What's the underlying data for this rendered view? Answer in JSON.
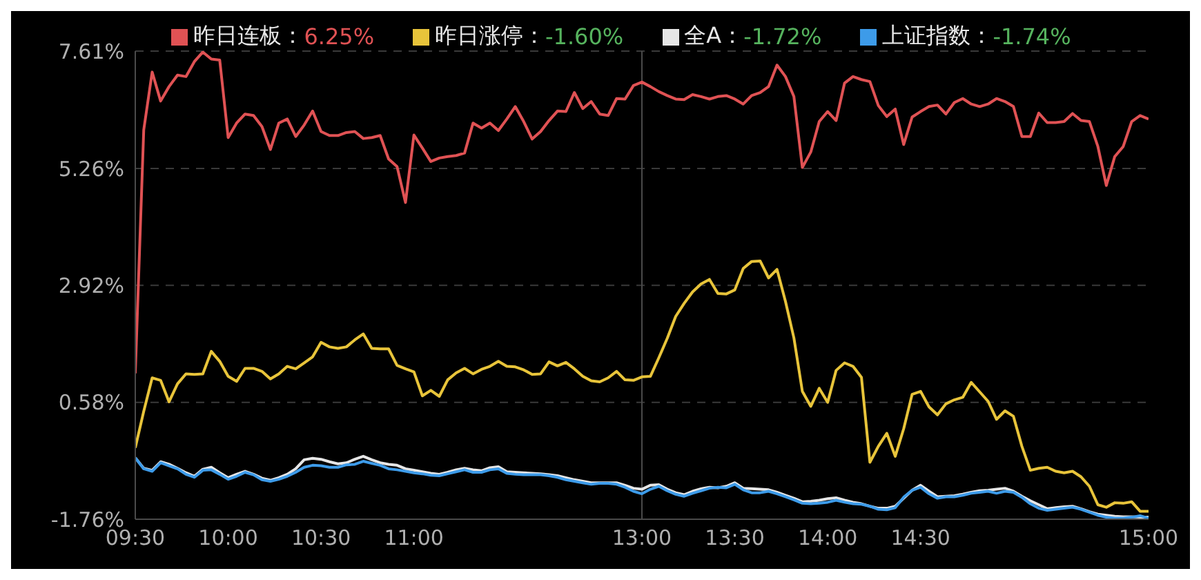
{
  "chart_data": {
    "type": "line",
    "legend": "top",
    "grid": "y",
    "marker": "none",
    "line_style": "solid",
    "categories": [
      "09:30",
      null,
      null,
      null,
      null,
      null,
      null,
      null,
      null,
      null,
      null,
      "10:00",
      null,
      null,
      null,
      null,
      null,
      null,
      null,
      null,
      null,
      null,
      "10:30",
      null,
      null,
      null,
      null,
      null,
      null,
      null,
      null,
      null,
      null,
      "11:00",
      null,
      null,
      null,
      null,
      null,
      null,
      null,
      null,
      null,
      null,
      null,
      null,
      null,
      null,
      null,
      null,
      null,
      null,
      null,
      null,
      null,
      null,
      null,
      null,
      null,
      null,
      "13:00",
      null,
      null,
      null,
      null,
      null,
      null,
      null,
      null,
      null,
      null,
      "13:30",
      null,
      null,
      null,
      null,
      null,
      null,
      null,
      null,
      null,
      null,
      "14:00",
      null,
      null,
      null,
      null,
      null,
      null,
      null,
      null,
      null,
      null,
      "14:30",
      null,
      null,
      null,
      null,
      null,
      null,
      null,
      null,
      null,
      null,
      null,
      null,
      null,
      null,
      null,
      null,
      null,
      null,
      null,
      null,
      null,
      null,
      null,
      null,
      null,
      null,
      "15:00"
    ],
    "ylim": [
      -1.76,
      7.61
    ],
    "yticks": [
      {
        "value": -1.76,
        "label": "-1.76%"
      },
      {
        "value": 0.58,
        "label": "0.58%"
      },
      {
        "value": 2.92,
        "label": "2.92%"
      },
      {
        "value": 5.26,
        "label": "5.26%"
      },
      {
        "value": 7.61,
        "label": "7.61%"
      }
    ],
    "ref_lines": [
      {
        "axis": "x",
        "value": "13:00",
        "color": "#4a4a4a"
      }
    ],
    "series": [
      {
        "name": "昨日连板：6.25%",
        "color": "#e05254",
        "values": [
          1.16,
          6.03,
          7.19,
          6.61,
          6.9,
          7.13,
          7.1,
          7.4,
          7.59,
          7.45,
          7.43,
          5.88,
          6.17,
          6.35,
          6.32,
          6.1,
          5.64,
          6.17,
          6.25,
          5.9,
          6.13,
          6.41,
          6.0,
          5.92,
          5.92,
          5.98,
          6.0,
          5.86,
          5.88,
          5.92,
          5.45,
          5.3,
          4.58,
          5.93,
          5.67,
          5.4,
          5.47,
          5.5,
          5.52,
          5.57,
          6.17,
          6.07,
          6.17,
          6.02,
          6.25,
          6.5,
          6.2,
          5.85,
          6.0,
          6.22,
          6.41,
          6.4,
          6.78,
          6.46,
          6.6,
          6.35,
          6.32,
          6.66,
          6.65,
          6.92,
          6.99,
          6.9,
          6.8,
          6.72,
          6.65,
          6.64,
          6.74,
          6.7,
          6.65,
          6.7,
          6.72,
          6.65,
          6.55,
          6.72,
          6.78,
          6.9,
          7.33,
          7.1,
          6.7,
          5.28,
          5.59,
          6.2,
          6.4,
          6.22,
          6.97,
          7.1,
          7.04,
          7.0,
          6.52,
          6.3,
          6.45,
          5.74,
          6.29,
          6.4,
          6.5,
          6.53,
          6.35,
          6.58,
          6.66,
          6.55,
          6.5,
          6.55,
          6.66,
          6.6,
          6.5,
          5.9,
          5.9,
          6.37,
          6.18,
          6.18,
          6.2,
          6.36,
          6.22,
          6.2,
          5.7,
          4.92,
          5.5,
          5.7,
          6.2,
          6.32,
          6.25
        ]
      },
      {
        "name": "昨日涨停：-1.60%",
        "color": "#e8c43a",
        "values": [
          -0.33,
          0.4,
          1.07,
          1.02,
          0.59,
          0.95,
          1.15,
          1.14,
          1.15,
          1.6,
          1.4,
          1.1,
          1.0,
          1.26,
          1.26,
          1.2,
          1.05,
          1.15,
          1.3,
          1.25,
          1.37,
          1.49,
          1.78,
          1.69,
          1.66,
          1.69,
          1.83,
          1.95,
          1.66,
          1.65,
          1.65,
          1.32,
          1.25,
          1.19,
          0.71,
          0.82,
          0.7,
          1.03,
          1.17,
          1.26,
          1.15,
          1.24,
          1.3,
          1.4,
          1.3,
          1.29,
          1.23,
          1.14,
          1.15,
          1.39,
          1.31,
          1.38,
          1.25,
          1.1,
          1.01,
          0.99,
          1.07,
          1.2,
          1.03,
          1.02,
          1.09,
          1.1,
          1.47,
          1.86,
          2.3,
          2.56,
          2.79,
          2.95,
          3.04,
          2.76,
          2.75,
          2.83,
          3.26,
          3.4,
          3.41,
          3.07,
          3.24,
          2.6,
          1.87,
          0.8,
          0.5,
          0.86,
          0.58,
          1.22,
          1.37,
          1.3,
          1.08,
          -0.62,
          -0.3,
          -0.04,
          -0.5,
          0.05,
          0.74,
          0.8,
          0.49,
          0.33,
          0.55,
          0.63,
          0.68,
          0.98,
          0.79,
          0.6,
          0.24,
          0.41,
          0.3,
          -0.3,
          -0.78,
          -0.74,
          -0.72,
          -0.8,
          -0.83,
          -0.8,
          -0.91,
          -1.1,
          -1.47,
          -1.52,
          -1.43,
          -1.44,
          -1.41,
          -1.6,
          -1.6
        ]
      },
      {
        "name": "全A：-1.72%",
        "color": "#e6e6e6",
        "values": [
          -0.53,
          -0.74,
          -0.78,
          -0.61,
          -0.66,
          -0.74,
          -0.83,
          -0.9,
          -0.76,
          -0.72,
          -0.83,
          -0.93,
          -0.86,
          -0.8,
          -0.86,
          -0.94,
          -0.98,
          -0.93,
          -0.86,
          -0.75,
          -0.57,
          -0.54,
          -0.56,
          -0.61,
          -0.65,
          -0.63,
          -0.56,
          -0.5,
          -0.57,
          -0.63,
          -0.66,
          -0.68,
          -0.75,
          -0.78,
          -0.81,
          -0.84,
          -0.86,
          -0.82,
          -0.77,
          -0.74,
          -0.77,
          -0.79,
          -0.73,
          -0.71,
          -0.81,
          -0.82,
          -0.83,
          -0.84,
          -0.85,
          -0.87,
          -0.89,
          -0.93,
          -0.97,
          -1.0,
          -1.03,
          -1.03,
          -1.03,
          -1.03,
          -1.08,
          -1.14,
          -1.16,
          -1.08,
          -1.07,
          -1.16,
          -1.23,
          -1.27,
          -1.2,
          -1.15,
          -1.12,
          -1.13,
          -1.1,
          -1.03,
          -1.14,
          -1.15,
          -1.16,
          -1.17,
          -1.22,
          -1.28,
          -1.34,
          -1.41,
          -1.4,
          -1.38,
          -1.35,
          -1.33,
          -1.38,
          -1.42,
          -1.45,
          -1.5,
          -1.54,
          -1.54,
          -1.5,
          -1.34,
          -1.18,
          -1.08,
          -1.2,
          -1.31,
          -1.3,
          -1.29,
          -1.26,
          -1.22,
          -1.19,
          -1.18,
          -1.16,
          -1.14,
          -1.2,
          -1.3,
          -1.39,
          -1.47,
          -1.55,
          -1.53,
          -1.51,
          -1.5,
          -1.55,
          -1.61,
          -1.66,
          -1.68,
          -1.7,
          -1.71,
          -1.71,
          -1.72,
          -1.72
        ]
      },
      {
        "name": "上证指数：-1.74%",
        "color": "#3d9be9",
        "values": [
          -0.53,
          -0.75,
          -0.8,
          -0.63,
          -0.69,
          -0.75,
          -0.86,
          -0.92,
          -0.78,
          -0.77,
          -0.86,
          -0.96,
          -0.9,
          -0.82,
          -0.87,
          -0.97,
          -1.0,
          -0.96,
          -0.9,
          -0.82,
          -0.72,
          -0.68,
          -0.69,
          -0.72,
          -0.72,
          -0.67,
          -0.66,
          -0.6,
          -0.64,
          -0.68,
          -0.75,
          -0.77,
          -0.8,
          -0.83,
          -0.85,
          -0.88,
          -0.89,
          -0.85,
          -0.81,
          -0.77,
          -0.82,
          -0.82,
          -0.77,
          -0.75,
          -0.84,
          -0.86,
          -0.87,
          -0.87,
          -0.87,
          -0.89,
          -0.92,
          -0.97,
          -1.0,
          -1.03,
          -1.06,
          -1.04,
          -1.04,
          -1.06,
          -1.12,
          -1.2,
          -1.25,
          -1.16,
          -1.1,
          -1.19,
          -1.26,
          -1.3,
          -1.24,
          -1.19,
          -1.14,
          -1.12,
          -1.13,
          -1.06,
          -1.17,
          -1.23,
          -1.23,
          -1.2,
          -1.25,
          -1.31,
          -1.37,
          -1.44,
          -1.45,
          -1.44,
          -1.42,
          -1.38,
          -1.42,
          -1.45,
          -1.46,
          -1.5,
          -1.56,
          -1.57,
          -1.53,
          -1.32,
          -1.18,
          -1.12,
          -1.25,
          -1.34,
          -1.31,
          -1.31,
          -1.28,
          -1.24,
          -1.22,
          -1.2,
          -1.24,
          -1.2,
          -1.22,
          -1.32,
          -1.45,
          -1.54,
          -1.58,
          -1.56,
          -1.54,
          -1.52,
          -1.56,
          -1.62,
          -1.68,
          -1.72,
          -1.74,
          -1.74,
          -1.72,
          -1.69,
          -1.74
        ]
      }
    ]
  }
}
